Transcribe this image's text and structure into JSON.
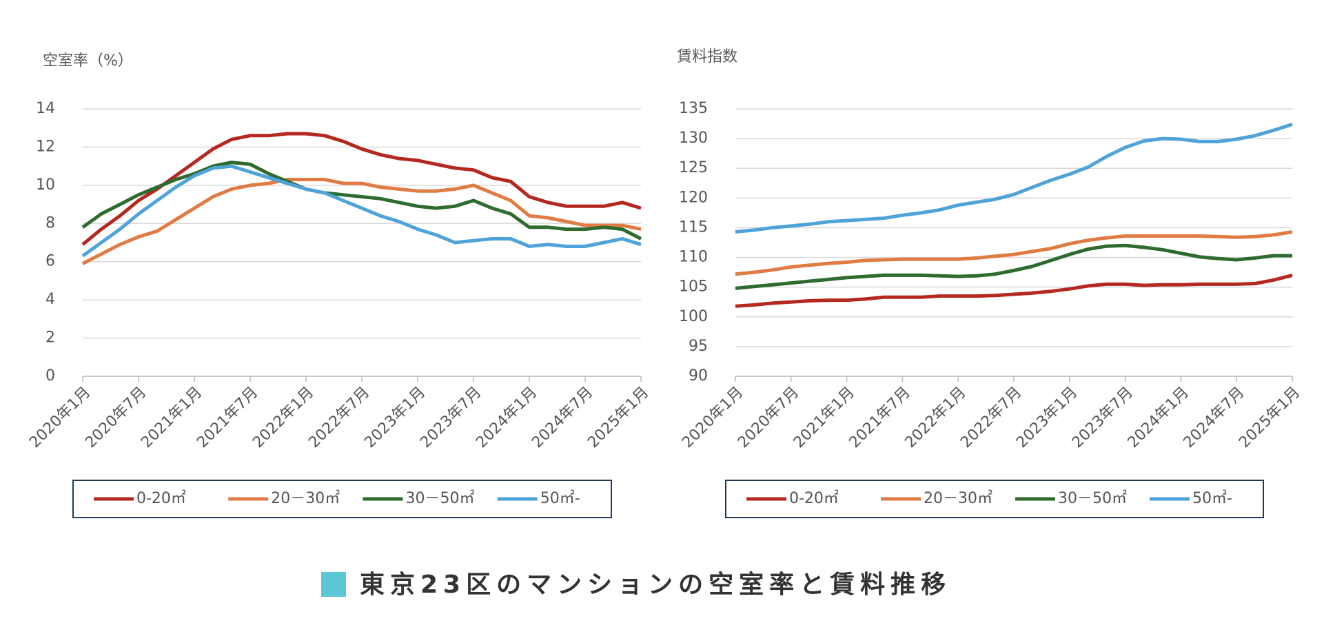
{
  "page_title": "東京23区のマンションの空室率と賃料推移",
  "chart_data": [
    {
      "type": "line",
      "ylabel": "空室率（%）",
      "categories": [
        "2020年1月",
        null,
        null,
        "2020年7月",
        null,
        null,
        "2021年1月",
        null,
        null,
        "2021年7月",
        null,
        null,
        "2022年1月",
        null,
        null,
        "2022年7月",
        null,
        null,
        "2023年1月",
        null,
        null,
        "2023年7月",
        null,
        null,
        "2024年1月",
        null,
        null,
        "2024年7月",
        null,
        null,
        "2025年1月"
      ],
      "ylim": [
        0,
        14
      ],
      "yticks": [
        0,
        2,
        4,
        6,
        8,
        10,
        12,
        14
      ],
      "grid": true,
      "legend": "bottom",
      "series": [
        {
          "name": "0-20㎡",
          "color": "#b5281f",
          "values": [
            6.9,
            7.7,
            8.4,
            9.2,
            9.8,
            10.5,
            11.2,
            11.9,
            12.4,
            12.6,
            12.6,
            12.7,
            12.7,
            12.6,
            12.3,
            11.9,
            11.6,
            11.4,
            11.3,
            11.1,
            10.9,
            10.8,
            10.4,
            10.2,
            9.4,
            9.1,
            8.9,
            8.9,
            8.9,
            9.1,
            8.8
          ]
        },
        {
          "name": "20－30㎡",
          "color": "#e07b43",
          "values": [
            5.9,
            6.4,
            6.9,
            7.3,
            7.6,
            8.2,
            8.8,
            9.4,
            9.8,
            10.0,
            10.1,
            10.3,
            10.3,
            10.3,
            10.1,
            10.1,
            9.9,
            9.8,
            9.7,
            9.7,
            9.8,
            10.0,
            9.6,
            9.2,
            8.4,
            8.3,
            8.1,
            7.9,
            7.9,
            7.9,
            7.7
          ]
        },
        {
          "name": "30－50㎡",
          "color": "#2e6b2e",
          "values": [
            7.8,
            8.5,
            9.0,
            9.5,
            9.9,
            10.3,
            10.6,
            11.0,
            11.2,
            11.1,
            10.6,
            10.2,
            9.8,
            9.6,
            9.5,
            9.4,
            9.3,
            9.1,
            8.9,
            8.8,
            8.9,
            9.2,
            8.8,
            8.5,
            7.8,
            7.8,
            7.7,
            7.7,
            7.8,
            7.7,
            7.2
          ]
        },
        {
          "name": "50㎡-",
          "color": "#4ea3d8",
          "values": [
            6.3,
            7.0,
            7.7,
            8.5,
            9.2,
            9.9,
            10.5,
            10.9,
            11.0,
            10.7,
            10.4,
            10.1,
            9.8,
            9.6,
            9.2,
            8.8,
            8.4,
            8.1,
            7.7,
            7.4,
            7.0,
            7.1,
            7.2,
            7.2,
            6.8,
            6.9,
            6.8,
            6.8,
            7.0,
            7.2,
            6.9
          ]
        }
      ]
    },
    {
      "type": "line",
      "ylabel": "賃料指数",
      "categories": [
        "2020年1月",
        null,
        null,
        "2020年7月",
        null,
        null,
        "2021年1月",
        null,
        null,
        "2021年7月",
        null,
        null,
        "2022年1月",
        null,
        null,
        "2022年7月",
        null,
        null,
        "2023年1月",
        null,
        null,
        "2023年7月",
        null,
        null,
        "2024年1月",
        null,
        null,
        "2024年7月",
        null,
        null,
        "2025年1月"
      ],
      "ylim": [
        90,
        135
      ],
      "yticks": [
        90,
        95,
        100,
        105,
        110,
        115,
        120,
        125,
        130,
        135
      ],
      "grid": true,
      "legend": "bottom",
      "series": [
        {
          "name": "0-20㎡",
          "color": "#b5281f",
          "values": [
            101.8,
            102.0,
            102.3,
            102.5,
            102.7,
            102.8,
            102.8,
            103.0,
            103.3,
            103.3,
            103.3,
            103.5,
            103.5,
            103.5,
            103.6,
            103.8,
            104.0,
            104.3,
            104.7,
            105.2,
            105.5,
            105.5,
            105.3,
            105.4,
            105.4,
            105.5,
            105.5,
            105.5,
            105.6,
            106.2,
            107.0
          ]
        },
        {
          "name": "20－30㎡",
          "color": "#e07b43",
          "values": [
            107.2,
            107.5,
            107.9,
            108.4,
            108.7,
            109.0,
            109.2,
            109.5,
            109.6,
            109.7,
            109.7,
            109.7,
            109.7,
            109.9,
            110.2,
            110.5,
            111.0,
            111.5,
            112.3,
            112.9,
            113.3,
            113.6,
            113.6,
            113.6,
            113.6,
            113.6,
            113.5,
            113.4,
            113.5,
            113.8,
            114.3
          ]
        },
        {
          "name": "30－50㎡",
          "color": "#2e6b2e",
          "values": [
            104.8,
            105.1,
            105.4,
            105.7,
            106.0,
            106.3,
            106.6,
            106.8,
            107.0,
            107.0,
            107.0,
            106.9,
            106.8,
            106.9,
            107.2,
            107.8,
            108.5,
            109.5,
            110.5,
            111.4,
            111.9,
            112.0,
            111.7,
            111.3,
            110.7,
            110.1,
            109.8,
            109.6,
            109.9,
            110.3,
            110.3
          ]
        },
        {
          "name": "50㎡-",
          "color": "#4ea3d8",
          "values": [
            114.3,
            114.6,
            115.0,
            115.3,
            115.6,
            116.0,
            116.2,
            116.4,
            116.6,
            117.1,
            117.5,
            118.0,
            118.8,
            119.3,
            119.8,
            120.6,
            121.8,
            123.0,
            124.0,
            125.2,
            127.0,
            128.5,
            129.6,
            130.0,
            129.9,
            129.5,
            129.5,
            129.9,
            130.5,
            131.4,
            132.4
          ]
        }
      ]
    }
  ]
}
